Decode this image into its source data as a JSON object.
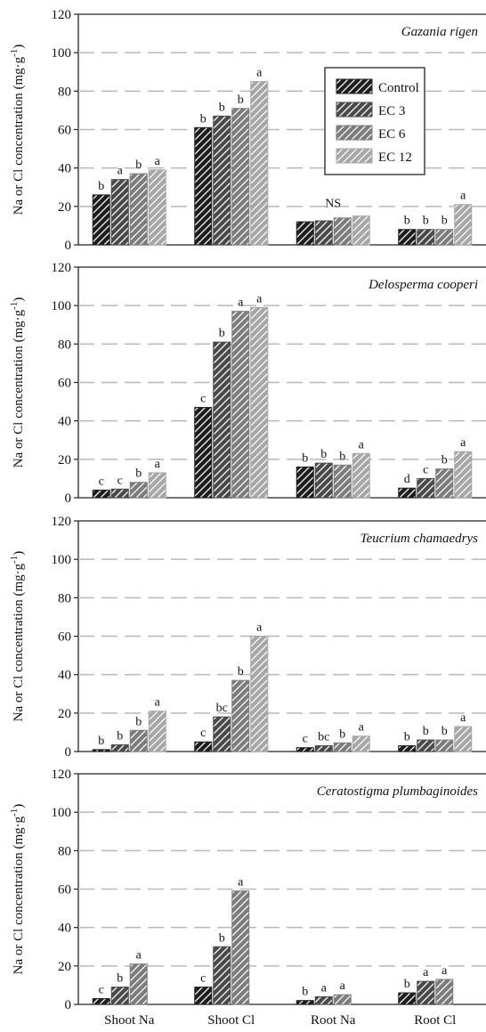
{
  "chart_data": [
    {
      "type": "bar",
      "title": "Gazania rigen",
      "ylabel": "Na or Cl concentration (mg·g-1)",
      "ylim": [
        0,
        120
      ],
      "yticks": [
        0,
        20,
        40,
        60,
        80,
        100,
        120
      ],
      "categories": [
        "Shoot Na",
        "Shoot Cl",
        "Root Na",
        "Root Cl"
      ],
      "series": [
        {
          "name": "Control",
          "values": [
            26,
            61,
            12,
            8
          ]
        },
        {
          "name": "EC 3",
          "values": [
            34,
            67,
            12.5,
            8
          ]
        },
        {
          "name": "EC 6",
          "values": [
            37,
            71,
            14,
            8
          ]
        },
        {
          "name": "EC 12",
          "values": [
            39,
            85,
            15,
            21
          ]
        }
      ],
      "annotations": [
        [
          "b",
          "a",
          "b",
          "a"
        ],
        [
          "b",
          "b",
          "b",
          "a"
        ],
        [
          "NS"
        ],
        [
          "b",
          "b",
          "b",
          "a"
        ]
      ],
      "legend": {
        "position": "top-right",
        "labels": [
          "Control",
          "EC 3",
          "EC 6",
          "EC 12"
        ]
      },
      "grid": true
    },
    {
      "type": "bar",
      "title": "Delosperma cooperi",
      "ylabel": "Na or Cl concentration (mg·g-1)",
      "ylim": [
        0,
        120
      ],
      "yticks": [
        0,
        20,
        40,
        60,
        80,
        100,
        120
      ],
      "categories": [
        "Shoot Na",
        "Shoot Cl",
        "Root Na",
        "Root Cl"
      ],
      "series": [
        {
          "name": "Control",
          "values": [
            4,
            47,
            16,
            5
          ]
        },
        {
          "name": "EC 3",
          "values": [
            4.5,
            81,
            18,
            10
          ]
        },
        {
          "name": "EC 6",
          "values": [
            8,
            97,
            17,
            15
          ]
        },
        {
          "name": "EC 12",
          "values": [
            13,
            99,
            23,
            24
          ]
        }
      ],
      "annotations": [
        [
          "c",
          "c",
          "b",
          "a"
        ],
        [
          "c",
          "b",
          "a",
          "a"
        ],
        [
          "b",
          "b",
          "b",
          "a"
        ],
        [
          "d",
          "c",
          "b",
          "a"
        ]
      ],
      "grid": true
    },
    {
      "type": "bar",
      "title": "Teucrium chamaedrys",
      "ylabel": "Na or Cl concentration (mg·g-1)",
      "ylim": [
        0,
        120
      ],
      "yticks": [
        0,
        20,
        40,
        60,
        80,
        100,
        120
      ],
      "categories": [
        "Shoot Na",
        "Shoot Cl",
        "Root Na",
        "Root Cl"
      ],
      "series": [
        {
          "name": "Control",
          "values": [
            1,
            5,
            2,
            3
          ]
        },
        {
          "name": "EC 3",
          "values": [
            3.5,
            18,
            3,
            6
          ]
        },
        {
          "name": "EC 6",
          "values": [
            11,
            37,
            4.5,
            6
          ]
        },
        {
          "name": "EC 12",
          "values": [
            21,
            60,
            8,
            13
          ]
        }
      ],
      "annotations": [
        [
          "b",
          "b",
          "b",
          "a"
        ],
        [
          "c",
          "bc",
          "b",
          "a"
        ],
        [
          "c",
          "bc",
          "b",
          "a"
        ],
        [
          "b",
          "b",
          "b",
          "a"
        ]
      ],
      "grid": true
    },
    {
      "type": "bar",
      "title": "Ceratostigma plumbaginoides",
      "ylabel": "Na or Cl concentration (mg·g-1)",
      "ylim": [
        0,
        120
      ],
      "yticks": [
        0,
        20,
        40,
        60,
        80,
        100,
        120
      ],
      "categories": [
        "Shoot Na",
        "Shoot Cl",
        "Root Na",
        "Root Cl"
      ],
      "series": [
        {
          "name": "Control",
          "values": [
            3,
            9,
            2,
            6
          ]
        },
        {
          "name": "EC 3",
          "values": [
            9,
            30,
            4,
            12
          ]
        },
        {
          "name": "EC 6",
          "values": [
            21,
            59,
            5,
            13
          ]
        }
      ],
      "annotations": [
        [
          "c",
          "b",
          "a"
        ],
        [
          "c",
          "b",
          "a"
        ],
        [
          "b",
          "a",
          "a"
        ],
        [
          "b",
          "a",
          "a"
        ]
      ],
      "grid": true
    }
  ],
  "colors": {
    "Control": "#1e1e1e",
    "EC 3": "#4a4a4a",
    "EC 6": "#7c7c7c",
    "EC 12": "#a6a6a6",
    "gridline": "#b8b8b8"
  },
  "ylabel_text": "Na or Cl concentration (mg·g",
  "ylabel_sup": "-1",
  "ylabel_end": ")"
}
